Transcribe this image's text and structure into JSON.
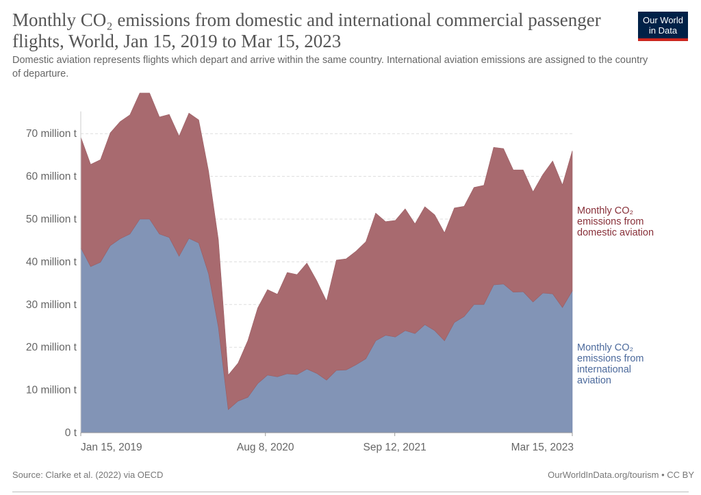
{
  "header": {
    "title": "Monthly CO₂ emissions from domestic and international commercial passenger flights, World, Jan 15, 2019 to Mar 15, 2023",
    "subtitle": "Domestic aviation represents flights which depart and arrive within the same country. International aviation emissions are assigned to the country of departure.",
    "logo_line1": "Our World",
    "logo_line2": "in Data"
  },
  "footer": {
    "source": "Source: Clarke et al. (2022) via OECD",
    "credit": "OurWorldInData.org/tourism • CC BY"
  },
  "colors": {
    "domestic": "#a86a6f",
    "international": "#8294b6",
    "domestic_label": "#883039",
    "international_label": "#4c6a9c",
    "logo_bg": "#002147",
    "logo_accent": "#ce261e"
  },
  "chart_data": {
    "type": "area",
    "stacked": true,
    "title": "Monthly CO₂ emissions from domestic and international commercial passenger flights, World, Jan 15, 2019 to Mar 15, 2023",
    "xlabel": "",
    "ylabel": "",
    "x_start": "2019-01-15",
    "x_end": "2023-03-15",
    "x_step": "monthly",
    "ylim": [
      0,
      80
    ],
    "y_unit": "million t",
    "y_ticks": [
      0,
      10,
      20,
      30,
      40,
      50,
      60,
      70
    ],
    "y_tick_labels": [
      "0 t",
      "10 million t",
      "20 million t",
      "30 million t",
      "40 million t",
      "50 million t",
      "60 million t",
      "70 million t"
    ],
    "x_ticks": [
      {
        "date": "2019-01-15",
        "label": "Jan 15, 2019"
      },
      {
        "date": "2020-08-08",
        "label": "Aug 8, 2020"
      },
      {
        "date": "2021-09-12",
        "label": "Sep 12, 2021"
      },
      {
        "date": "2023-03-15",
        "label": "Mar 15, 2023"
      }
    ],
    "grid": "horizontal-dashed",
    "legend": "right, inline labels",
    "series": [
      {
        "name": "Monthly CO₂ emissions from international aviation",
        "label_lines": [
          "Monthly CO₂",
          "emissions from",
          "international",
          "aviation"
        ],
        "values": [
          43.3,
          38.9,
          39.9,
          43.8,
          45.4,
          46.5,
          50.0,
          50.0,
          46.5,
          45.7,
          41.3,
          45.5,
          44.4,
          37.2,
          24.7,
          5.4,
          7.4,
          8.3,
          11.5,
          13.5,
          13.1,
          13.8,
          13.6,
          14.9,
          13.9,
          12.3,
          14.6,
          14.7,
          15.9,
          17.3,
          21.5,
          22.8,
          22.4,
          23.9,
          23.2,
          25.3,
          23.9,
          21.5,
          25.8,
          27.2,
          30.0,
          30.0,
          34.6,
          34.8,
          32.9,
          33.0,
          30.6,
          32.7,
          32.5,
          29.3,
          33.2
        ]
      },
      {
        "name": "Monthly CO₂ emissions from domestic aviation",
        "label_lines": [
          "Monthly CO₂",
          "emissions from",
          "domestic aviation"
        ],
        "values": [
          25.9,
          23.9,
          24.0,
          26.4,
          27.4,
          27.9,
          29.5,
          29.5,
          27.4,
          28.8,
          28.1,
          29.3,
          28.8,
          24.0,
          20.5,
          8.1,
          8.9,
          13.3,
          17.7,
          20.0,
          19.3,
          23.7,
          23.4,
          24.8,
          21.7,
          18.5,
          25.8,
          26.0,
          26.6,
          27.4,
          29.9,
          26.6,
          27.3,
          28.5,
          25.7,
          27.6,
          27.1,
          25.3,
          26.8,
          25.8,
          27.4,
          27.9,
          32.2,
          31.7,
          28.6,
          28.5,
          25.8,
          27.7,
          31.1,
          28.7,
          32.8
        ]
      }
    ]
  }
}
